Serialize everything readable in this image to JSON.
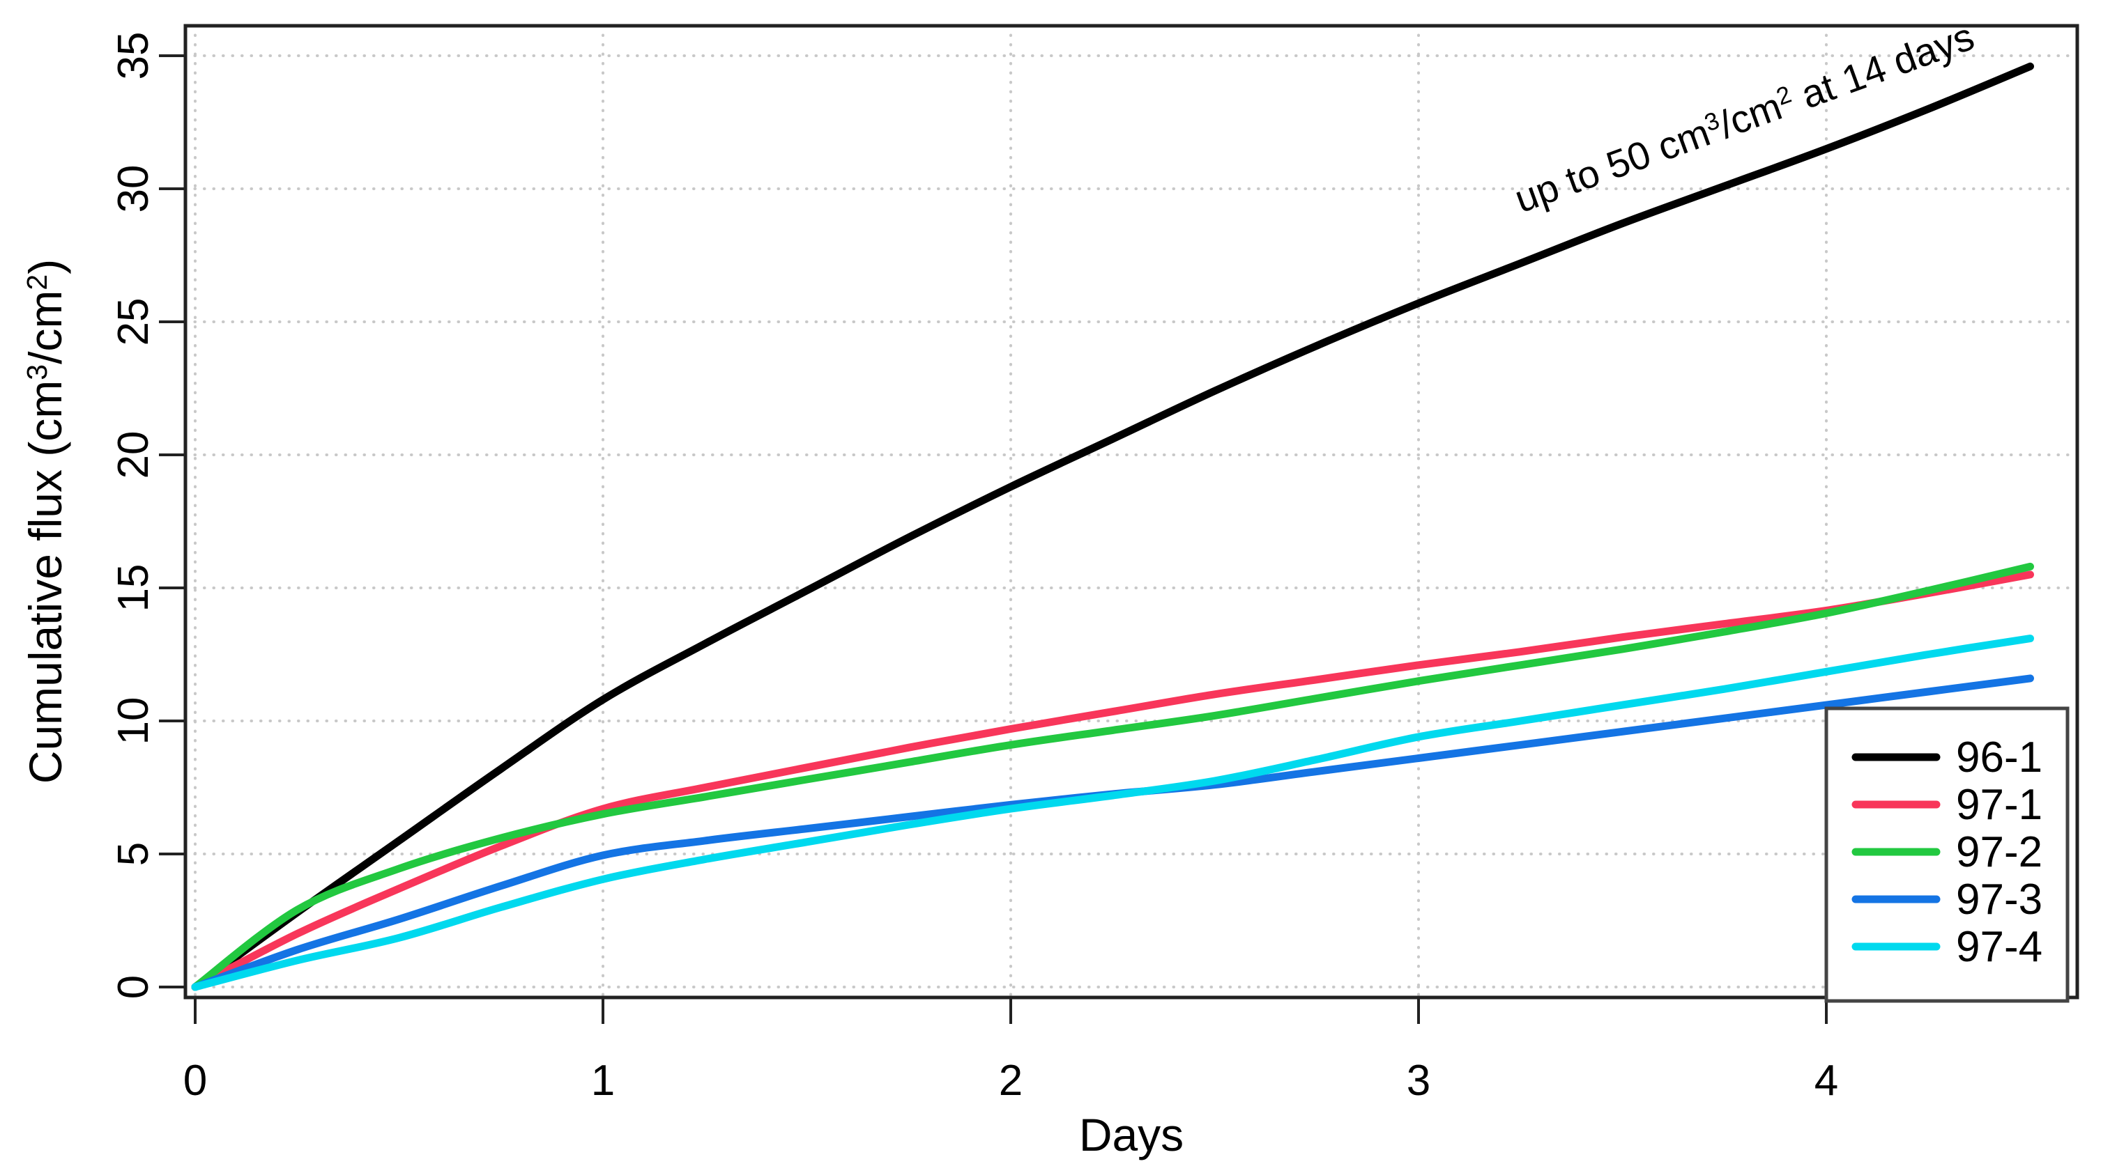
{
  "chart_data": {
    "type": "line",
    "title": "",
    "xlabel": "Days",
    "ylabel": "Cumulative flux (cm³/cm²)",
    "ylabel_parts": [
      {
        "t": "Cumulative flux (cm"
      },
      {
        "t": "3",
        "sup": true
      },
      {
        "t": "/cm"
      },
      {
        "t": "2",
        "sup": true
      },
      {
        "t": ")"
      }
    ],
    "annotation": {
      "text": "up to 50 cm³/cm² at 14 days",
      "parts": [
        {
          "t": "up to 50 cm"
        },
        {
          "t": "3",
          "sup": true
        },
        {
          "t": "/cm"
        },
        {
          "t": "2",
          "sup": true
        },
        {
          "t": " at 14 days"
        }
      ],
      "x": 3.81,
      "y": 32.2,
      "rotation_deg": -20
    },
    "xlim": [
      0,
      4.61
    ],
    "ylim": [
      0,
      36.1
    ],
    "xticks": [
      0,
      1,
      2,
      3,
      4
    ],
    "yticks": [
      0,
      5,
      10,
      15,
      20,
      25,
      30,
      35
    ],
    "grid": {
      "show": true,
      "style": "dotted",
      "color": "#c8c8c8"
    },
    "x": [
      0,
      0.25,
      0.5,
      0.75,
      1,
      1.25,
      1.5,
      1.75,
      2,
      2.25,
      2.5,
      2.75,
      3,
      3.25,
      3.5,
      3.75,
      4,
      4.25,
      4.5
    ],
    "series": [
      {
        "name": "96-1",
        "color": "#000000",
        "values": [
          0,
          2.8,
          5.5,
          8.2,
          10.8,
          12.9,
          14.9,
          16.9,
          18.8,
          20.6,
          22.4,
          24.1,
          25.7,
          27.2,
          28.7,
          30.1,
          31.5,
          33.0,
          34.6
        ]
      },
      {
        "name": "97-1",
        "color": "#f8365a",
        "values": [
          0,
          2.0,
          3.7,
          5.3,
          6.7,
          7.5,
          8.25,
          9.0,
          9.7,
          10.35,
          11.0,
          11.55,
          12.1,
          12.6,
          13.15,
          13.65,
          14.15,
          14.8,
          15.5
        ]
      },
      {
        "name": "97-2",
        "color": "#22c840",
        "values": [
          0,
          2.9,
          4.45,
          5.6,
          6.5,
          7.15,
          7.8,
          8.45,
          9.1,
          9.65,
          10.2,
          10.85,
          11.5,
          12.1,
          12.7,
          13.35,
          14.05,
          14.9,
          15.8
        ]
      },
      {
        "name": "97-3",
        "color": "#1474e4",
        "values": [
          0,
          1.4,
          2.55,
          3.8,
          4.95,
          5.5,
          5.95,
          6.4,
          6.85,
          7.25,
          7.6,
          8.1,
          8.6,
          9.1,
          9.6,
          10.1,
          10.6,
          11.1,
          11.6
        ]
      },
      {
        "name": "97-4",
        "color": "#00d9ee",
        "values": [
          0,
          1.0,
          1.85,
          3.0,
          4.05,
          4.8,
          5.45,
          6.1,
          6.7,
          7.2,
          7.75,
          8.55,
          9.4,
          10.0,
          10.6,
          11.2,
          11.85,
          12.5,
          13.1
        ]
      }
    ],
    "legend": {
      "position": "bottom-right",
      "labels": [
        "96-1",
        "97-1",
        "97-2",
        "97-3",
        "97-4"
      ]
    }
  }
}
